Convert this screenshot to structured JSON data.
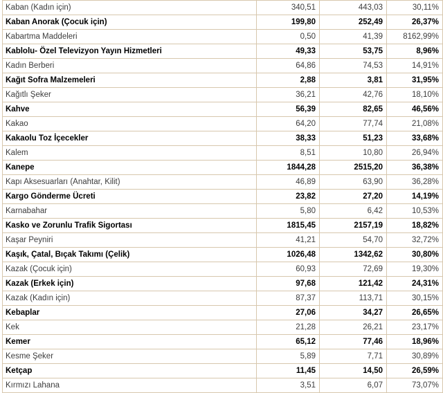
{
  "table": {
    "rows": [
      {
        "name": "Kaban (Kadın için)",
        "v1": "340,51",
        "v2": "443,03",
        "pct": "30,11%",
        "bold": false
      },
      {
        "name": "Kaban Anorak (Çocuk için)",
        "v1": "199,80",
        "v2": "252,49",
        "pct": "26,37%",
        "bold": true
      },
      {
        "name": "Kabartma Maddeleri",
        "v1": "0,50",
        "v2": "41,39",
        "pct": "8162,99%",
        "bold": false
      },
      {
        "name": "Kablolu- Özel Televizyon Yayın Hizmetleri",
        "v1": "49,33",
        "v2": "53,75",
        "pct": "8,96%",
        "bold": true
      },
      {
        "name": "Kadın Berberi",
        "v1": "64,86",
        "v2": "74,53",
        "pct": "14,91%",
        "bold": false
      },
      {
        "name": "Kağıt Sofra Malzemeleri",
        "v1": "2,88",
        "v2": "3,81",
        "pct": "31,95%",
        "bold": true
      },
      {
        "name": "Kağıtlı Şeker",
        "v1": "36,21",
        "v2": "42,76",
        "pct": "18,10%",
        "bold": false
      },
      {
        "name": "Kahve",
        "v1": "56,39",
        "v2": "82,65",
        "pct": "46,56%",
        "bold": true
      },
      {
        "name": "Kakao",
        "v1": "64,20",
        "v2": "77,74",
        "pct": "21,08%",
        "bold": false
      },
      {
        "name": "Kakaolu Toz İçecekler",
        "v1": "38,33",
        "v2": "51,23",
        "pct": "33,68%",
        "bold": true
      },
      {
        "name": "Kalem",
        "v1": "8,51",
        "v2": "10,80",
        "pct": "26,94%",
        "bold": false
      },
      {
        "name": "Kanepe",
        "v1": "1844,28",
        "v2": "2515,20",
        "pct": "36,38%",
        "bold": true
      },
      {
        "name": "Kapı Aksesuarları (Anahtar, Kilit)",
        "v1": "46,89",
        "v2": "63,90",
        "pct": "36,28%",
        "bold": false
      },
      {
        "name": "Kargo Gönderme Ücreti",
        "v1": "23,82",
        "v2": "27,20",
        "pct": "14,19%",
        "bold": true
      },
      {
        "name": "Karnabahar",
        "v1": "5,80",
        "v2": "6,42",
        "pct": "10,53%",
        "bold": false
      },
      {
        "name": "Kasko ve Zorunlu Trafik Sigortası",
        "v1": "1815,45",
        "v2": "2157,19",
        "pct": "18,82%",
        "bold": true
      },
      {
        "name": "Kaşar Peyniri",
        "v1": "41,21",
        "v2": "54,70",
        "pct": "32,72%",
        "bold": false
      },
      {
        "name": "Kaşık, Çatal, Bıçak Takımı (Çelik)",
        "v1": "1026,48",
        "v2": "1342,62",
        "pct": "30,80%",
        "bold": true
      },
      {
        "name": "Kazak (Çocuk için)",
        "v1": "60,93",
        "v2": "72,69",
        "pct": "19,30%",
        "bold": false
      },
      {
        "name": "Kazak (Erkek için)",
        "v1": "97,68",
        "v2": "121,42",
        "pct": "24,31%",
        "bold": true
      },
      {
        "name": "Kazak (Kadın için)",
        "v1": "87,37",
        "v2": "113,71",
        "pct": "30,15%",
        "bold": false
      },
      {
        "name": "Kebaplar",
        "v1": "27,06",
        "v2": "34,27",
        "pct": "26,65%",
        "bold": true
      },
      {
        "name": "Kek",
        "v1": "21,28",
        "v2": "26,21",
        "pct": "23,17%",
        "bold": false
      },
      {
        "name": "Kemer",
        "v1": "65,12",
        "v2": "77,46",
        "pct": "18,96%",
        "bold": true
      },
      {
        "name": "Kesme Şeker",
        "v1": "5,89",
        "v2": "7,71",
        "pct": "30,89%",
        "bold": false
      },
      {
        "name": "Ketçap",
        "v1": "11,45",
        "v2": "14,50",
        "pct": "26,59%",
        "bold": true
      },
      {
        "name": "Kırmızı Lahana",
        "v1": "3,51",
        "v2": "6,07",
        "pct": "73,07%",
        "bold": false
      }
    ]
  }
}
